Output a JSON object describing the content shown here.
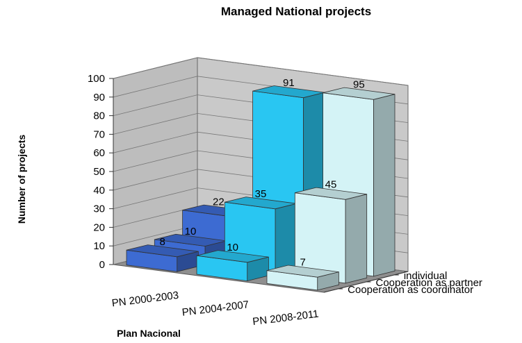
{
  "chart_data": {
    "type": "bar",
    "title": "Managed National projects",
    "xlabel": "Plan Nacional",
    "ylabel": "Number of projects",
    "ylim": [
      0,
      100
    ],
    "yticks": [
      "0",
      "10",
      "20",
      "30",
      "40",
      "50",
      "60",
      "70",
      "80",
      "90",
      "100"
    ],
    "categories": [
      "PN 2000-2003",
      "PN 2004-2007",
      "PN 2008-2011"
    ],
    "depth_categories": [
      "individual",
      "Cooperation as partner",
      "Cooperation as coordinator"
    ],
    "series": [
      {
        "name": "Cooperation as coordinator",
        "values": [
          8,
          10,
          7
        ]
      },
      {
        "name": "Cooperation as partner",
        "values": [
          10,
          35,
          45
        ]
      },
      {
        "name": "individual",
        "values": [
          22,
          91,
          95
        ]
      }
    ],
    "data_labels": [
      [
        "8",
        "10",
        "7"
      ],
      [
        "10",
        "35",
        "45"
      ],
      [
        "22",
        "91",
        "95"
      ]
    ],
    "colors": {
      "PN 2000-2003": "#3d6bd2",
      "PN 2004-2007": "#29c6f2",
      "PN 2008-2011": "#d4f3f6",
      "walls": "#c9c9c9",
      "floor": "#8f8f8f"
    },
    "grid": true,
    "style": "3d-column"
  }
}
